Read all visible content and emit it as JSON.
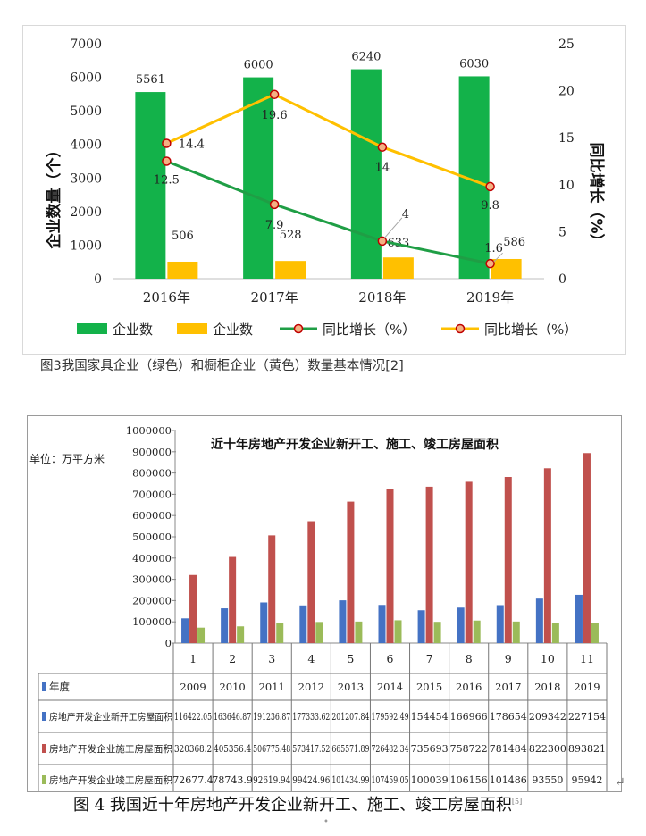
{
  "chart_data": [
    {
      "type": "bar+line",
      "title": "",
      "categories": [
        "2016年",
        "2017年",
        "2018年",
        "2019年"
      ],
      "ylabel_left": "企业数量（个）",
      "ylabel_right": "同比增长（%）",
      "ylim_left": [
        0,
        7000
      ],
      "ylim_right": [
        0,
        25
      ],
      "yticks_left": [
        "0",
        "1000",
        "2000",
        "3000",
        "4000",
        "5000",
        "6000",
        "7000"
      ],
      "yticks_right": [
        "0",
        "5",
        "10",
        "15",
        "20",
        "25"
      ],
      "series": [
        {
          "name": "企业数",
          "type": "bar",
          "axis": "left",
          "color": "#13b24a",
          "values": [
            5561,
            6000,
            6240,
            6030
          ],
          "labels": [
            "5561",
            "6000",
            "6240",
            "6030"
          ]
        },
        {
          "name": "企业数",
          "type": "bar",
          "axis": "left",
          "color": "#ffc000",
          "values": [
            506,
            528,
            633,
            586
          ],
          "labels": [
            "506",
            "528",
            "633",
            "586"
          ]
        },
        {
          "name": "同比增长（%）",
          "type": "line",
          "axis": "right",
          "color": "#1f9e45",
          "values": [
            12.5,
            7.9,
            4,
            1.6
          ],
          "labels": [
            "12.5",
            "7.9",
            "4",
            "1.6"
          ]
        },
        {
          "name": "同比增长（%）",
          "type": "line",
          "axis": "right",
          "color": "#ffc000",
          "values": [
            14.4,
            19.6,
            14,
            9.8
          ],
          "labels": [
            "14.4",
            "19.6",
            "14",
            "9.8"
          ]
        }
      ],
      "legend_position": "bottom"
    },
    {
      "type": "bar",
      "title": "近十年房地产开发企业新开工、施工、竣工房屋面积",
      "unit_label": "单位：万平方米",
      "ylim": [
        0,
        1000000
      ],
      "yticks": [
        "0",
        "100000",
        "200000",
        "300000",
        "400000",
        "500000",
        "600000",
        "700000",
        "800000",
        "900000",
        "1000000"
      ],
      "categories": [
        "1",
        "2",
        "3",
        "4",
        "5",
        "6",
        "7",
        "8",
        "9",
        "10",
        "11"
      ],
      "table_row_label": "年度",
      "years": [
        "2009",
        "2010",
        "2011",
        "2012",
        "2013",
        "2014",
        "2015",
        "2016",
        "2017",
        "2018",
        "2019"
      ],
      "series": [
        {
          "name": "房地产开发企业新开工房屋面积",
          "color": "#4472c4",
          "values": [
            116422.05,
            163646.87,
            191236.87,
            177333.62,
            201207.84,
            179592.49,
            154454,
            166966,
            178654,
            209342,
            227154
          ],
          "labels": [
            "116422.05",
            "163646.87",
            "191236.87",
            "177333.62",
            "201207.84",
            "179592.49",
            "154454",
            "166966",
            "178654",
            "209342",
            "227154"
          ]
        },
        {
          "name": "房地产开发企业施工房屋面积",
          "color": "#c0504d",
          "values": [
            320368.2,
            405356.4,
            506775.48,
            573417.52,
            665571.89,
            726482.34,
            735693,
            758722,
            781484,
            822300,
            893821
          ],
          "labels": [
            "320368.2",
            "405356.4",
            "506775.48",
            "573417.52",
            "665571.89",
            "726482.34",
            "735693",
            "758722",
            "781484",
            "822300",
            "893821"
          ]
        },
        {
          "name": "房地产开发企业竣工房屋面积",
          "color": "#9bbb59",
          "values": [
            72677.4,
            78743.9,
            92619.94,
            99424.96,
            101434.99,
            107459.05,
            100039,
            106156,
            101486,
            93550,
            95942
          ],
          "labels": [
            "72677.4",
            "78743.9",
            "92619.94",
            "99424.96",
            "101434.99",
            "107459.05",
            "100039",
            "106156",
            "101486",
            "93550",
            "95942"
          ]
        }
      ]
    }
  ],
  "captions": {
    "fig3": "图3我国家具企业（绿色）和橱柜企业（黄色）数量基本情况[2]",
    "fig4": "图 4 我国近十年房地产开发企业新开工、施工、竣工房屋面积",
    "fig4_ref": "[5]"
  },
  "marks": {
    "return_arrow": "↵",
    "dot": "•"
  }
}
